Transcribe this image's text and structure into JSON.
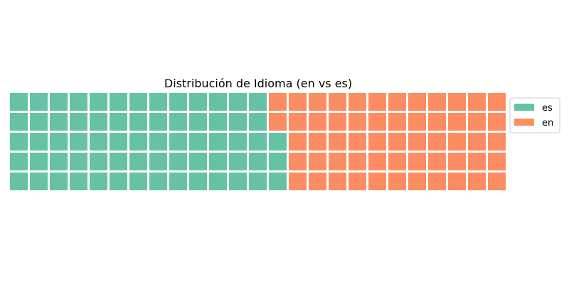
{
  "chart_data": {
    "type": "waffle",
    "title": "Distribución de Idioma (en vs es)",
    "rows": 5,
    "fill_order": "column-major, bottom-to-top",
    "series": [
      {
        "name": "es",
        "value": 68,
        "color": "#66c2a5"
      },
      {
        "name": "en",
        "value": 57,
        "color": "#fc8d62"
      }
    ],
    "legend": {
      "placement": "right",
      "entries": [
        "es",
        "en"
      ]
    }
  }
}
